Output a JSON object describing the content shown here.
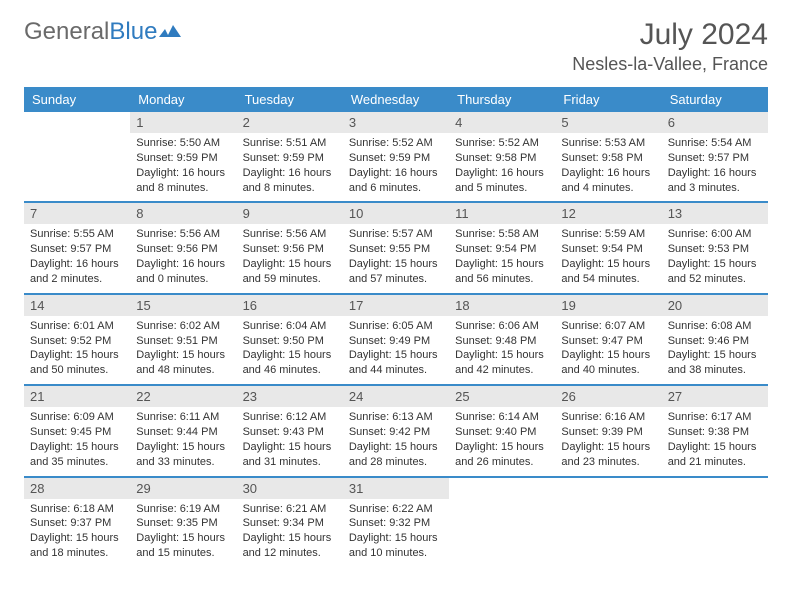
{
  "brand": {
    "part1": "General",
    "part2": "Blue"
  },
  "title": "July 2024",
  "location": "Nesles-la-Vallee, France",
  "colors": {
    "header_bg": "#3a8bc9",
    "header_text": "#ffffff",
    "daynum_bg": "#e8e8e8",
    "border": "#3a8bc9",
    "title_color": "#555555",
    "body_text": "#333333",
    "logo_gray": "#6a6a6a",
    "logo_blue": "#2f7bbf"
  },
  "weekdays": [
    "Sunday",
    "Monday",
    "Tuesday",
    "Wednesday",
    "Thursday",
    "Friday",
    "Saturday"
  ],
  "weeks": [
    [
      null,
      {
        "n": "1",
        "sr": "5:50 AM",
        "ss": "9:59 PM",
        "dl": "16 hours and 8 minutes."
      },
      {
        "n": "2",
        "sr": "5:51 AM",
        "ss": "9:59 PM",
        "dl": "16 hours and 8 minutes."
      },
      {
        "n": "3",
        "sr": "5:52 AM",
        "ss": "9:59 PM",
        "dl": "16 hours and 6 minutes."
      },
      {
        "n": "4",
        "sr": "5:52 AM",
        "ss": "9:58 PM",
        "dl": "16 hours and 5 minutes."
      },
      {
        "n": "5",
        "sr": "5:53 AM",
        "ss": "9:58 PM",
        "dl": "16 hours and 4 minutes."
      },
      {
        "n": "6",
        "sr": "5:54 AM",
        "ss": "9:57 PM",
        "dl": "16 hours and 3 minutes."
      }
    ],
    [
      {
        "n": "7",
        "sr": "5:55 AM",
        "ss": "9:57 PM",
        "dl": "16 hours and 2 minutes."
      },
      {
        "n": "8",
        "sr": "5:56 AM",
        "ss": "9:56 PM",
        "dl": "16 hours and 0 minutes."
      },
      {
        "n": "9",
        "sr": "5:56 AM",
        "ss": "9:56 PM",
        "dl": "15 hours and 59 minutes."
      },
      {
        "n": "10",
        "sr": "5:57 AM",
        "ss": "9:55 PM",
        "dl": "15 hours and 57 minutes."
      },
      {
        "n": "11",
        "sr": "5:58 AM",
        "ss": "9:54 PM",
        "dl": "15 hours and 56 minutes."
      },
      {
        "n": "12",
        "sr": "5:59 AM",
        "ss": "9:54 PM",
        "dl": "15 hours and 54 minutes."
      },
      {
        "n": "13",
        "sr": "6:00 AM",
        "ss": "9:53 PM",
        "dl": "15 hours and 52 minutes."
      }
    ],
    [
      {
        "n": "14",
        "sr": "6:01 AM",
        "ss": "9:52 PM",
        "dl": "15 hours and 50 minutes."
      },
      {
        "n": "15",
        "sr": "6:02 AM",
        "ss": "9:51 PM",
        "dl": "15 hours and 48 minutes."
      },
      {
        "n": "16",
        "sr": "6:04 AM",
        "ss": "9:50 PM",
        "dl": "15 hours and 46 minutes."
      },
      {
        "n": "17",
        "sr": "6:05 AM",
        "ss": "9:49 PM",
        "dl": "15 hours and 44 minutes."
      },
      {
        "n": "18",
        "sr": "6:06 AM",
        "ss": "9:48 PM",
        "dl": "15 hours and 42 minutes."
      },
      {
        "n": "19",
        "sr": "6:07 AM",
        "ss": "9:47 PM",
        "dl": "15 hours and 40 minutes."
      },
      {
        "n": "20",
        "sr": "6:08 AM",
        "ss": "9:46 PM",
        "dl": "15 hours and 38 minutes."
      }
    ],
    [
      {
        "n": "21",
        "sr": "6:09 AM",
        "ss": "9:45 PM",
        "dl": "15 hours and 35 minutes."
      },
      {
        "n": "22",
        "sr": "6:11 AM",
        "ss": "9:44 PM",
        "dl": "15 hours and 33 minutes."
      },
      {
        "n": "23",
        "sr": "6:12 AM",
        "ss": "9:43 PM",
        "dl": "15 hours and 31 minutes."
      },
      {
        "n": "24",
        "sr": "6:13 AM",
        "ss": "9:42 PM",
        "dl": "15 hours and 28 minutes."
      },
      {
        "n": "25",
        "sr": "6:14 AM",
        "ss": "9:40 PM",
        "dl": "15 hours and 26 minutes."
      },
      {
        "n": "26",
        "sr": "6:16 AM",
        "ss": "9:39 PM",
        "dl": "15 hours and 23 minutes."
      },
      {
        "n": "27",
        "sr": "6:17 AM",
        "ss": "9:38 PM",
        "dl": "15 hours and 21 minutes."
      }
    ],
    [
      {
        "n": "28",
        "sr": "6:18 AM",
        "ss": "9:37 PM",
        "dl": "15 hours and 18 minutes."
      },
      {
        "n": "29",
        "sr": "6:19 AM",
        "ss": "9:35 PM",
        "dl": "15 hours and 15 minutes."
      },
      {
        "n": "30",
        "sr": "6:21 AM",
        "ss": "9:34 PM",
        "dl": "15 hours and 12 minutes."
      },
      {
        "n": "31",
        "sr": "6:22 AM",
        "ss": "9:32 PM",
        "dl": "15 hours and 10 minutes."
      },
      null,
      null,
      null
    ]
  ],
  "labels": {
    "sunrise": "Sunrise: ",
    "sunset": "Sunset: ",
    "daylight": "Daylight: "
  }
}
